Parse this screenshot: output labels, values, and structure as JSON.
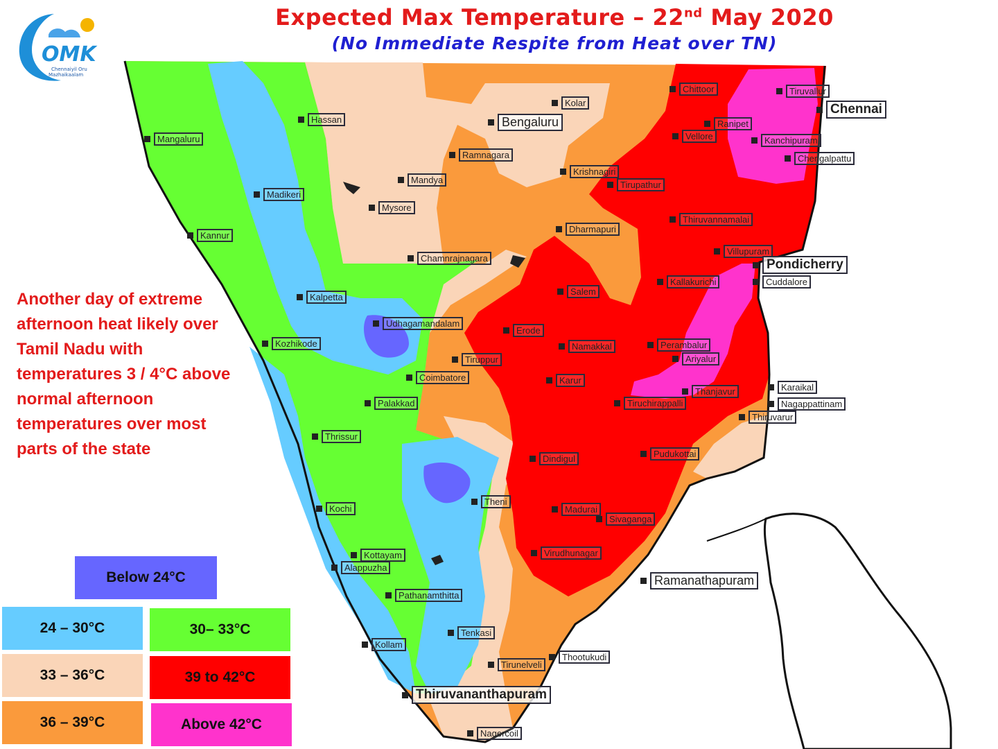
{
  "header": {
    "title_main": "Expected Max Temperature – 22",
    "title_sup": "nd",
    "title_end": " May 2020",
    "subtitle": "(No Immediate Respite from Heat over TN)"
  },
  "logo": {
    "text": "OMK",
    "tagline_1": "Chennaiyil Oru",
    "tagline_2": "Mazhaikaalam"
  },
  "note": "Another day of extreme afternoon heat likely over Tamil Nadu with temperatures 3 / 4°C above normal afternoon temperatures over most parts of the state",
  "legend": [
    {
      "label": "Below 24°C",
      "color": "#6666ff"
    },
    {
      "label": "24 – 30°C",
      "color": "#66ccff"
    },
    {
      "label": "30– 33°C",
      "color": "#66ff33"
    },
    {
      "label": "33 – 36°C",
      "color": "#fad5b8"
    },
    {
      "label": "39 to 42°C",
      "color": "#ff0000"
    },
    {
      "label": "36 – 39°C",
      "color": "#fa9a3c"
    },
    {
      "label": "Above 42°C",
      "color": "#ff33cc"
    }
  ],
  "cities": [
    "Hassan",
    "Kolar",
    "Bengaluru",
    "Chittoor",
    "Tiruvallur",
    "Chennai",
    "Ranipet",
    "Vellore",
    "Kanchipuram",
    "Chengalpattu",
    "Mangaluru",
    "Ramnagara",
    "Mandya",
    "Krishnagiri",
    "Tirupathur",
    "Madikeri",
    "Mysore",
    "Kannur",
    "Dharmapuri",
    "Thiruvannamalai",
    "Chamnrajnagara",
    "Villupuram",
    "Pondicherry",
    "Salem",
    "Kallakurichi",
    "Cuddalore",
    "Kalpetta",
    "Udhagamandalam",
    "Erode",
    "Namakkal",
    "Perambalur",
    "Kozhikode",
    "Ariyalur",
    "Tiruppur",
    "Coimbatore",
    "Karur",
    "Thanjavur",
    "Karaikal",
    "Palakkad",
    "Tiruchirappalli",
    "Nagappattinam",
    "Thiruvarur",
    "Thrissur",
    "Dindigul",
    "Pudukottai",
    "Theni",
    "Kochi",
    "Madurai",
    "Sivaganga",
    "Kottayam",
    "Virudhunagar",
    "Alappuzha",
    "Ramanathapuram",
    "Pathanamthitta",
    "Tenkasi",
    "Kollam",
    "Thootukudi",
    "Tirunelveli",
    "Thiruvananthapuram",
    "Nagercoil"
  ]
}
